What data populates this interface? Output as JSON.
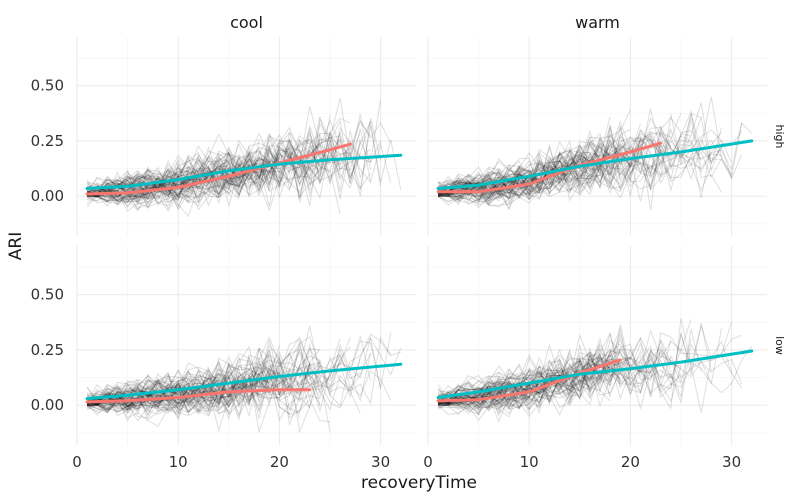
{
  "chart_data": {
    "type": "line",
    "layout": "facet grid",
    "xlabel": "recoveryTime",
    "ylabel": "ARI",
    "xlim": [
      0,
      33.5
    ],
    "ylim": [
      -0.18,
      0.72
    ],
    "x_ticks": [
      0,
      10,
      20,
      30
    ],
    "x_tick_labels": [
      "0",
      "10",
      "20",
      "30"
    ],
    "y_ticks": [
      0.0,
      0.25,
      0.5
    ],
    "y_tick_labels": [
      "0.00",
      "0.25",
      "0.50"
    ],
    "column_facets": [
      "cool",
      "warm"
    ],
    "row_facets": [
      "high",
      "low"
    ],
    "grid": true,
    "background_trajectories": "many thin semi-transparent black lines, one per individual",
    "series_colors": {
      "coral": "#F8766D",
      "teal": "#00BFC4"
    },
    "panels": [
      {
        "column": "cool",
        "row": "high",
        "series": [
          {
            "color": "#F8766D",
            "x": [
              1,
              5,
              10,
              15,
              20,
              25,
              27
            ],
            "values": [
              0.01,
              0.015,
              0.04,
              0.09,
              0.15,
              0.21,
              0.235
            ]
          },
          {
            "color": "#00BFC4",
            "x": [
              1,
              5,
              10,
              15,
              20,
              25,
              32
            ],
            "values": [
              0.035,
              0.045,
              0.075,
              0.115,
              0.145,
              0.165,
              0.185
            ]
          }
        ]
      },
      {
        "column": "warm",
        "row": "high",
        "series": [
          {
            "color": "#F8766D",
            "x": [
              1,
              5,
              10,
              15,
              20,
              23
            ],
            "values": [
              0.02,
              0.02,
              0.055,
              0.14,
              0.2,
              0.24
            ]
          },
          {
            "color": "#00BFC4",
            "x": [
              1,
              5,
              10,
              15,
              20,
              25,
              32
            ],
            "values": [
              0.035,
              0.05,
              0.09,
              0.135,
              0.17,
              0.2,
              0.25
            ]
          }
        ]
      },
      {
        "column": "cool",
        "row": "low",
        "series": [
          {
            "color": "#F8766D",
            "x": [
              1,
              5,
              10,
              15,
              20,
              23
            ],
            "values": [
              0.015,
              0.02,
              0.035,
              0.06,
              0.07,
              0.07
            ]
          },
          {
            "color": "#00BFC4",
            "x": [
              1,
              5,
              10,
              15,
              20,
              25,
              32
            ],
            "values": [
              0.03,
              0.045,
              0.07,
              0.1,
              0.13,
              0.155,
              0.185
            ]
          }
        ]
      },
      {
        "column": "warm",
        "row": "low",
        "series": [
          {
            "color": "#F8766D",
            "x": [
              1,
              5,
              10,
              15,
              19
            ],
            "values": [
              0.02,
              0.025,
              0.06,
              0.145,
              0.205
            ]
          },
          {
            "color": "#00BFC4",
            "x": [
              1,
              5,
              10,
              15,
              20,
              25,
              32
            ],
            "values": [
              0.035,
              0.06,
              0.1,
              0.14,
              0.165,
              0.195,
              0.245
            ]
          }
        ]
      }
    ]
  }
}
